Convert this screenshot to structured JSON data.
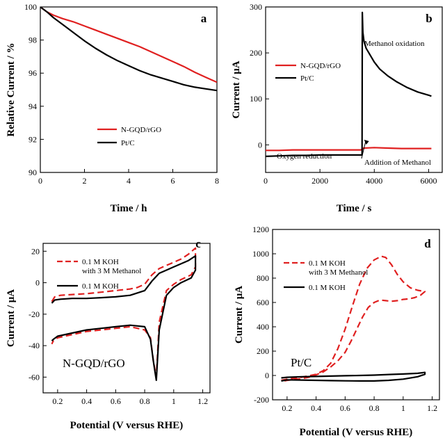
{
  "chart_data": [
    {
      "panel": "a",
      "type": "line",
      "xlabel": "Time / h",
      "ylabel": "Relative Current / %",
      "xlim": [
        0,
        8
      ],
      "ylim": [
        90,
        100
      ],
      "xticks": [
        0,
        2,
        4,
        6,
        8
      ],
      "yticks": [
        90,
        92,
        94,
        96,
        98,
        100
      ],
      "legend_position": "bottom-center",
      "series": [
        {
          "name": "N-GQD/rGO",
          "color": "#e02020",
          "dash": "solid",
          "x": [
            0,
            0.3,
            0.6,
            1,
            1.5,
            2,
            2.5,
            3,
            3.5,
            4,
            4.5,
            5,
            5.5,
            6,
            6.5,
            7,
            7.5,
            8
          ],
          "y": [
            100,
            99.7,
            99.5,
            99.3,
            99.1,
            98.85,
            98.6,
            98.35,
            98.1,
            97.85,
            97.6,
            97.3,
            97.0,
            96.7,
            96.4,
            96.05,
            95.75,
            95.45
          ]
        },
        {
          "name": "Pt/C",
          "color": "#000000",
          "dash": "solid",
          "x": [
            0,
            0.3,
            0.6,
            1,
            1.5,
            2,
            2.5,
            3,
            3.5,
            4,
            4.5,
            5,
            5.5,
            6,
            6.5,
            7,
            7.5,
            8
          ],
          "y": [
            100,
            99.7,
            99.35,
            98.95,
            98.45,
            97.95,
            97.5,
            97.1,
            96.75,
            96.45,
            96.15,
            95.9,
            95.7,
            95.5,
            95.3,
            95.15,
            95.05,
            94.95
          ]
        }
      ]
    },
    {
      "panel": "b",
      "type": "line",
      "xlabel": "Time / s",
      "ylabel": "Current / μA",
      "xlim": [
        0,
        6500
      ],
      "ylim": [
        -60,
        300
      ],
      "xticks": [
        0,
        2000,
        4000,
        6000
      ],
      "yticks": [
        0,
        100,
        200,
        300
      ],
      "legend_position": "center-left",
      "annotations": [
        "Methanol oxidation",
        "Oxygen reduction",
        "Addition of Methanol"
      ],
      "series": [
        {
          "name": "N-GQD/rGO",
          "color": "#e02020",
          "dash": "solid",
          "x": [
            0,
            500,
            1000,
            1500,
            2000,
            2500,
            3000,
            3500,
            3560,
            3600,
            4000,
            4500,
            5000,
            5500,
            6000,
            6100
          ],
          "y": [
            -12,
            -12,
            -11,
            -11,
            -11,
            -11,
            -11,
            -11,
            -10,
            -7,
            -6,
            -7,
            -8,
            -8,
            -8,
            -8
          ]
        },
        {
          "name": "Pt/C",
          "color": "#000000",
          "dash": "solid",
          "x": [
            0,
            500,
            1000,
            1500,
            2000,
            2500,
            3000,
            3500,
            3550,
            3560,
            3580,
            3620,
            3700,
            3800,
            3900,
            4000,
            4200,
            4500,
            4800,
            5200,
            5600,
            6000,
            6100
          ],
          "y": [
            -25,
            -24,
            -23,
            -23,
            -22,
            -22,
            -22,
            -22,
            -22,
            288,
            245,
            225,
            210,
            200,
            190,
            180,
            165,
            150,
            138,
            125,
            115,
            108,
            106
          ]
        }
      ]
    },
    {
      "panel": "c",
      "type": "line",
      "xlabel": "Potential (V versus RHE)",
      "ylabel": "Current / μA",
      "xlim": [
        0.1,
        1.25
      ],
      "ylim": [
        -70,
        25
      ],
      "xticks": [
        0.2,
        0.4,
        0.6,
        0.8,
        1.0,
        1.2
      ],
      "yticks": [
        -60,
        -40,
        -20,
        0,
        20
      ],
      "legend_position": "top-left",
      "annotations": [
        "N-GQD/rGO"
      ],
      "series": [
        {
          "name": "0.1 M KOH with 3 M Methanol",
          "color": "#e02020",
          "dash": "dashed",
          "x": [
            0.16,
            0.18,
            0.22,
            0.3,
            0.4,
            0.5,
            0.6,
            0.7,
            0.75,
            0.8,
            0.85,
            0.9,
            0.95,
            1.0,
            1.05,
            1.1,
            1.15,
            1.15,
            1.12,
            1.05,
            1.0,
            0.95,
            0.9,
            0.88,
            0.86,
            0.84,
            0.8,
            0.7,
            0.6,
            0.5,
            0.4,
            0.3,
            0.2,
            0.17,
            0.16
          ],
          "y": [
            -12,
            -9,
            -8,
            -7.5,
            -7,
            -6,
            -5,
            -4,
            -3,
            -1,
            5,
            9,
            11,
            13,
            15,
            18,
            22,
            10,
            5,
            2,
            -1,
            -5,
            -25,
            -60,
            -50,
            -35,
            -30,
            -28,
            -29,
            -30,
            -31,
            -33,
            -35,
            -37,
            -39
          ]
        },
        {
          "name": "0.1 M KOH",
          "color": "#000000",
          "dash": "solid",
          "x": [
            0.16,
            0.18,
            0.22,
            0.3,
            0.4,
            0.5,
            0.6,
            0.7,
            0.8,
            0.85,
            0.9,
            0.95,
            1.0,
            1.05,
            1.1,
            1.15,
            1.15,
            1.12,
            1.05,
            1.0,
            0.95,
            0.9,
            0.88,
            0.86,
            0.84,
            0.8,
            0.7,
            0.6,
            0.5,
            0.4,
            0.3,
            0.2,
            0.17,
            0.16
          ],
          "y": [
            -13,
            -11,
            -10.5,
            -10,
            -10,
            -9.5,
            -9,
            -8,
            -5,
            1,
            6,
            8,
            10,
            12,
            14,
            17,
            8,
            3,
            0,
            -3,
            -8,
            -30,
            -62,
            -50,
            -36,
            -28,
            -27,
            -28,
            -29,
            -30,
            -32,
            -34,
            -36,
            -37
          ]
        }
      ]
    },
    {
      "panel": "d",
      "type": "line",
      "xlabel": "Potential (V versus RHE)",
      "ylabel": "Current / μA",
      "xlim": [
        0.1,
        1.25
      ],
      "ylim": [
        -200,
        1200
      ],
      "xticks": [
        0.2,
        0.4,
        0.6,
        0.8,
        1.0,
        1.2
      ],
      "yticks": [
        -200,
        0,
        200,
        400,
        600,
        800,
        1000,
        1200
      ],
      "legend_position": "top-left",
      "annotations": [
        "Pt/C"
      ],
      "series": [
        {
          "name": "0.1 M KOH with 3 M Methanol",
          "color": "#e02020",
          "dash": "dashed",
          "x": [
            0.16,
            0.2,
            0.3,
            0.4,
            0.45,
            0.5,
            0.55,
            0.6,
            0.65,
            0.7,
            0.75,
            0.8,
            0.85,
            0.88,
            0.92,
            0.96,
            1.0,
            1.05,
            1.1,
            1.15,
            1.12,
            1.08,
            1.04,
            1.0,
            0.96,
            0.92,
            0.88,
            0.84,
            0.8,
            0.76,
            0.72,
            0.68,
            0.64,
            0.6,
            0.55,
            0.5,
            0.45,
            0.4,
            0.35,
            0.3,
            0.2,
            0.16
          ],
          "y": [
            -40,
            -30,
            -15,
            10,
            40,
            100,
            220,
            380,
            570,
            750,
            880,
            950,
            980,
            970,
            910,
            830,
            770,
            720,
            700,
            690,
            660,
            640,
            630,
            625,
            615,
            610,
            615,
            620,
            600,
            560,
            480,
            380,
            280,
            190,
            120,
            70,
            30,
            5,
            -15,
            -25,
            -40,
            -50
          ]
        },
        {
          "name": "0.1 M KOH",
          "color": "#000000",
          "dash": "solid",
          "x": [
            0.16,
            0.2,
            0.3,
            0.4,
            0.5,
            0.6,
            0.7,
            0.8,
            0.9,
            1.0,
            1.1,
            1.15,
            1.15,
            1.1,
            1.0,
            0.9,
            0.8,
            0.7,
            0.6,
            0.5,
            0.4,
            0.3,
            0.2,
            0.16
          ],
          "y": [
            -20,
            -15,
            -10,
            -8,
            -5,
            -2,
            0,
            3,
            8,
            12,
            18,
            25,
            10,
            -10,
            -30,
            -40,
            -45,
            -45,
            -44,
            -42,
            -40,
            -38,
            -36,
            -45
          ]
        }
      ]
    }
  ]
}
